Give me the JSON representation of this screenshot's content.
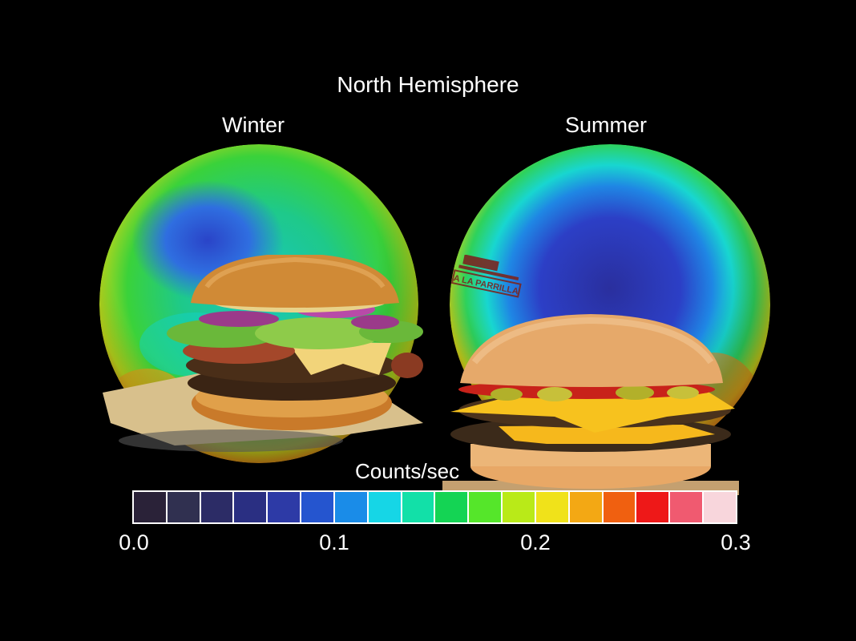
{
  "figure": {
    "title": "North Hemisphere",
    "panels": [
      {
        "label": "Winter"
      },
      {
        "label": "Summer"
      }
    ],
    "colorbar": {
      "label": "Counts/sec",
      "ticks": [
        "0.0",
        "0.1",
        "0.2",
        "0.3"
      ],
      "range": [
        0.0,
        0.3
      ],
      "colors": [
        "#2a2238",
        "#303050",
        "#2c2c66",
        "#2a2f82",
        "#2d3aa6",
        "#2555cf",
        "#1a8ce8",
        "#16d6e6",
        "#12e0a8",
        "#14d454",
        "#55e62a",
        "#b9ea18",
        "#f0e21a",
        "#f3a814",
        "#f06010",
        "#ee1818",
        "#f05a70",
        "#f8d6dc"
      ]
    },
    "stamp_text": "A LA PARRILLA"
  }
}
